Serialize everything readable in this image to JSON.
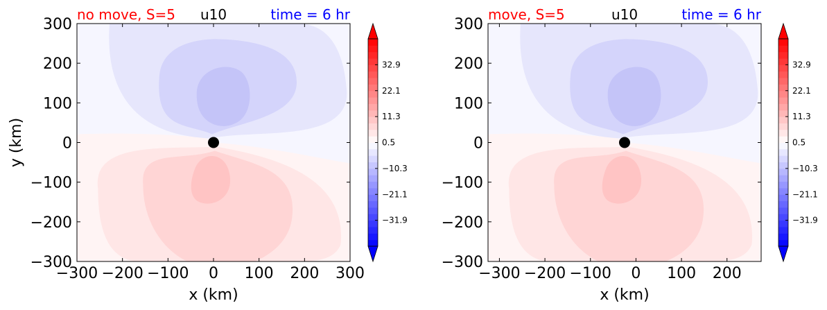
{
  "chart_data": [
    {
      "type": "heatmap",
      "title_left": "no move, S=5",
      "title_center": "u10",
      "title_right": "time = 6 hr",
      "xlabel": "x (km)",
      "ylabel": "y (km)",
      "xlim": [
        -300,
        300
      ],
      "ylim": [
        -300,
        300
      ],
      "xticks": [
        -300,
        -200,
        -100,
        0,
        100,
        200,
        300
      ],
      "yticks": [
        -300,
        -200,
        -100,
        0,
        100,
        200,
        300
      ],
      "marker": {
        "x": 0,
        "y": 0
      },
      "colorbar": {
        "ticks": [
          32.9,
          22.1,
          11.3,
          0.5,
          -10.3,
          -21.1,
          -31.9
        ],
        "tick_labels": [
          "32.9",
          "22.1",
          "11.3",
          "0.5",
          "−10.3",
          "−21.1",
          "−31.9"
        ],
        "range": [
          -42.7,
          43.7
        ],
        "extend": "both"
      },
      "field": {
        "negative_center": {
          "x": 0,
          "y": 100
        },
        "positive_center": {
          "x": -10,
          "y": -100
        },
        "levels": [
          -2,
          -4,
          -6,
          -8
        ]
      }
    },
    {
      "type": "heatmap",
      "title_left": "move, S=5",
      "title_center": "u10",
      "title_right": "time = 6 hr",
      "xlabel": "x (km)",
      "ylabel": "",
      "xlim": [
        -325,
        275
      ],
      "ylim": [
        -300,
        300
      ],
      "xticks": [
        -300,
        -200,
        -100,
        0,
        100,
        200
      ],
      "yticks": [
        -300,
        -200,
        -100,
        0,
        100,
        200,
        300
      ],
      "marker": {
        "x": -25,
        "y": 0
      },
      "colorbar": {
        "ticks": [
          32.9,
          22.1,
          11.3,
          0.5,
          -10.3,
          -21.1,
          -31.9
        ],
        "tick_labels": [
          "32.9",
          "22.1",
          "11.3",
          "0.5",
          "−10.3",
          "−21.1",
          "−31.9"
        ],
        "range": [
          -42.7,
          43.7
        ],
        "extend": "both"
      },
      "field": {
        "negative_center": {
          "x": -25,
          "y": 100
        },
        "positive_center": {
          "x": -35,
          "y": -100
        },
        "levels": [
          -2,
          -4,
          -6,
          -8
        ]
      }
    }
  ],
  "colors": {
    "title_left": "#ff0000",
    "title_center": "#000000",
    "title_right": "#0000ff",
    "negative_levels": [
      "#f6f6ff",
      "#e6e6fc",
      "#d4d4fb",
      "#c4c4f8"
    ],
    "positive_levels": [
      "#fff4f4",
      "#ffe6e6",
      "#ffd5d5",
      "#ffc4c4"
    ],
    "marker": "#000000"
  }
}
